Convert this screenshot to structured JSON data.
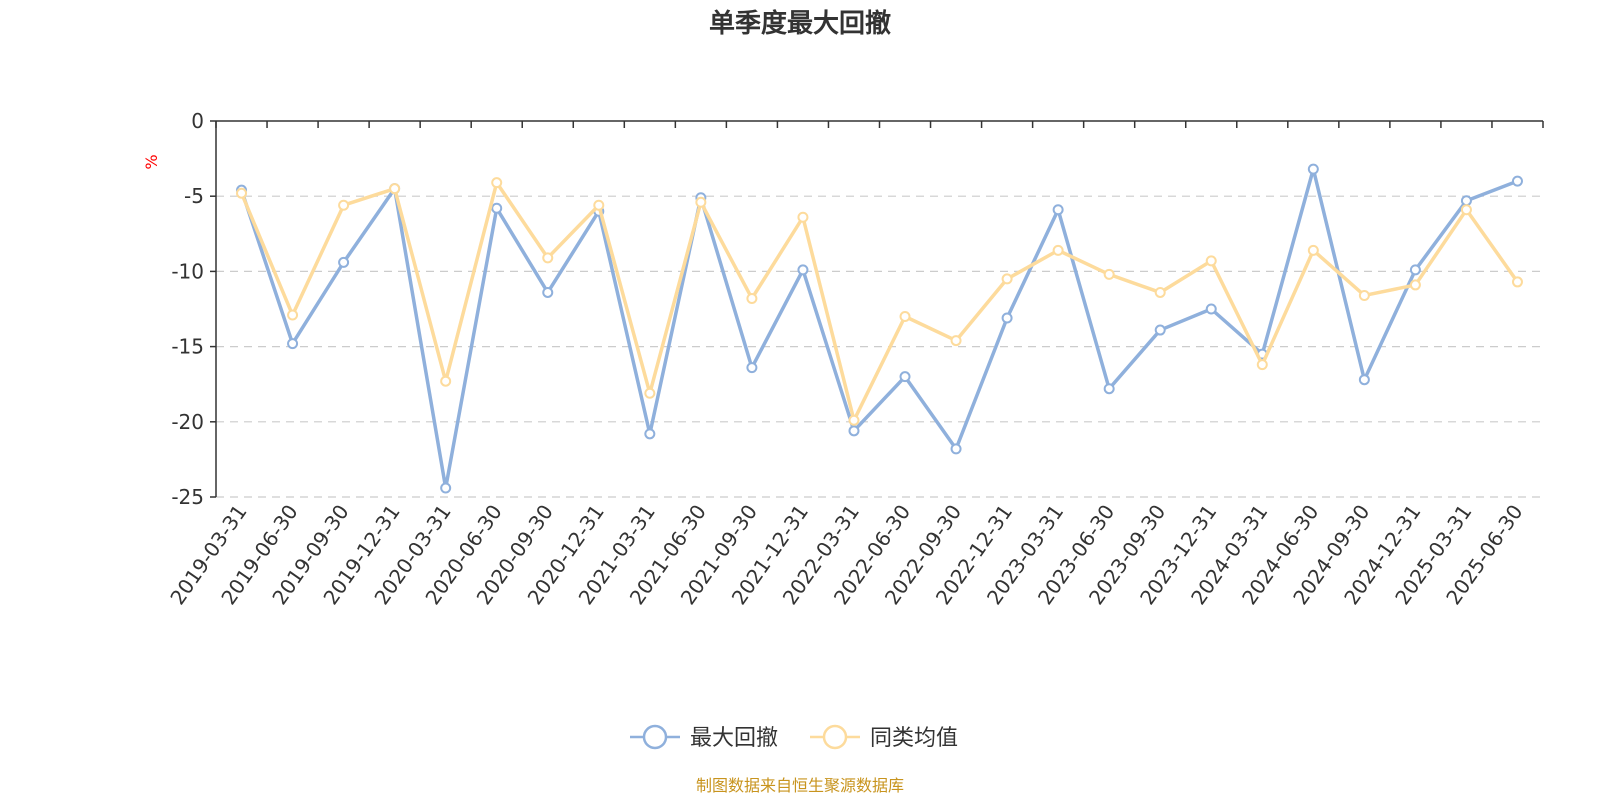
{
  "chart_data": {
    "type": "line",
    "title": "单季度最大回撤",
    "ylabel": "%",
    "ylim": [
      -25,
      0
    ],
    "yticks": [
      0,
      -5,
      -10,
      -15,
      -20,
      -25
    ],
    "grid": true,
    "legend_position": "bottom-center",
    "categories": [
      "2019-03-31",
      "2019-06-30",
      "2019-09-30",
      "2019-12-31",
      "2020-03-31",
      "2020-06-30",
      "2020-09-30",
      "2020-12-31",
      "2021-03-31",
      "2021-06-30",
      "2021-09-30",
      "2021-12-31",
      "2022-03-31",
      "2022-06-30",
      "2022-09-30",
      "2022-12-31",
      "2023-03-31",
      "2023-06-30",
      "2023-09-30",
      "2023-12-31",
      "2024-03-31",
      "2024-06-30",
      "2024-09-30",
      "2024-12-31",
      "2025-03-31",
      "2025-06-30"
    ],
    "series": [
      {
        "name": "最大回撤",
        "color": "#8fb0dc",
        "values": [
          -4.6,
          -14.8,
          -9.4,
          -4.5,
          -24.4,
          -5.8,
          -11.4,
          -6.0,
          -20.8,
          -5.1,
          -16.4,
          -9.9,
          -20.6,
          -17.0,
          -21.8,
          -13.1,
          -5.9,
          -17.8,
          -13.9,
          -12.5,
          -15.5,
          -3.2,
          -17.2,
          -9.9,
          -5.3,
          -4.0
        ]
      },
      {
        "name": "同类均值",
        "color": "#fddb9c",
        "values": [
          -4.8,
          -12.9,
          -5.6,
          -4.5,
          -17.3,
          -4.1,
          -9.1,
          -5.6,
          -18.1,
          -5.4,
          -11.8,
          -6.4,
          -19.9,
          -13.0,
          -14.6,
          -10.5,
          -8.6,
          -10.2,
          -11.4,
          -9.3,
          -16.2,
          -8.6,
          -11.6,
          -10.9,
          -5.9,
          -10.7
        ]
      }
    ],
    "source": "制图数据来自恒生聚源数据库",
    "source_color": "#c8941e",
    "unit_color": "#ff0000",
    "axis_color": "#333333",
    "grid_color": "#cccccc"
  }
}
